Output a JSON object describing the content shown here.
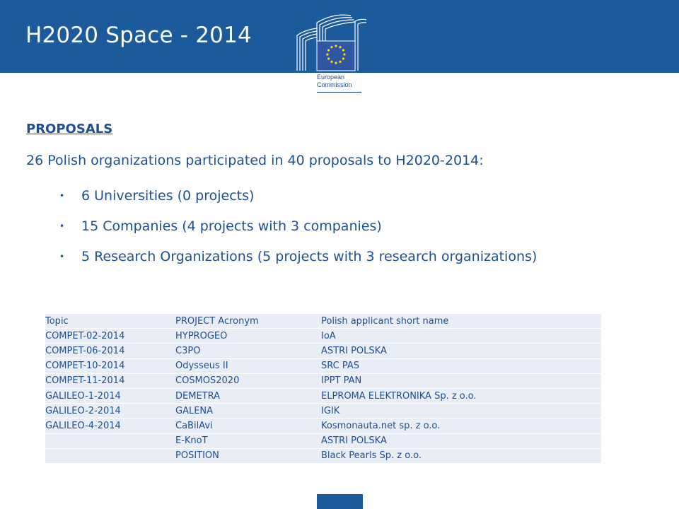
{
  "header": {
    "title": "H2020 Space - 2014",
    "logo": {
      "name": "european-commission-logo",
      "text_line1": "European",
      "text_line2": "Commission"
    }
  },
  "content": {
    "section_title": "PROPOSALS",
    "intro": "26 Polish organizations participated in 40 proposals to H2020-2014:",
    "bullets": [
      "6 Universities (0 projects)",
      "15 Companies  (4 projects with 3 companies)",
      "5 Research Organizations (5 projects with 3 research organizations)"
    ]
  },
  "table": {
    "columns": [
      "Topic",
      "PROJECT Acronym",
      "Polish applicant short name"
    ],
    "rows": [
      [
        "COMPET-02-2014",
        "HYPROGEO",
        "IoA"
      ],
      [
        "COMPET-06-2014",
        "C3PO",
        "ASTRI POLSKA"
      ],
      [
        "COMPET-10-2014",
        "Odysseus II",
        "SRC PAS"
      ],
      [
        "COMPET-11-2014",
        "COSMOS2020",
        "IPPT PAN"
      ],
      [
        "GALILEO-1-2014",
        "DEMETRA",
        "ELPROMA ELEKTRONIKA Sp. z o.o."
      ],
      [
        "GALILEO-2-2014",
        "GALENA",
        "IGIK"
      ],
      [
        "GALILEO-4-2014",
        "CaBilAvi",
        "Kosmonauta.net sp. z o.o."
      ],
      [
        "",
        "E-KnoT",
        "ASTRI POLSKA"
      ],
      [
        "",
        "POSITION",
        "Black Pearls Sp. z o.o."
      ]
    ]
  },
  "colors": {
    "header_blue": "#1b5a9b",
    "text_blue": "#1d4f91",
    "table_row": "#e9edf6",
    "eu_yellow": "#ffdd00"
  }
}
